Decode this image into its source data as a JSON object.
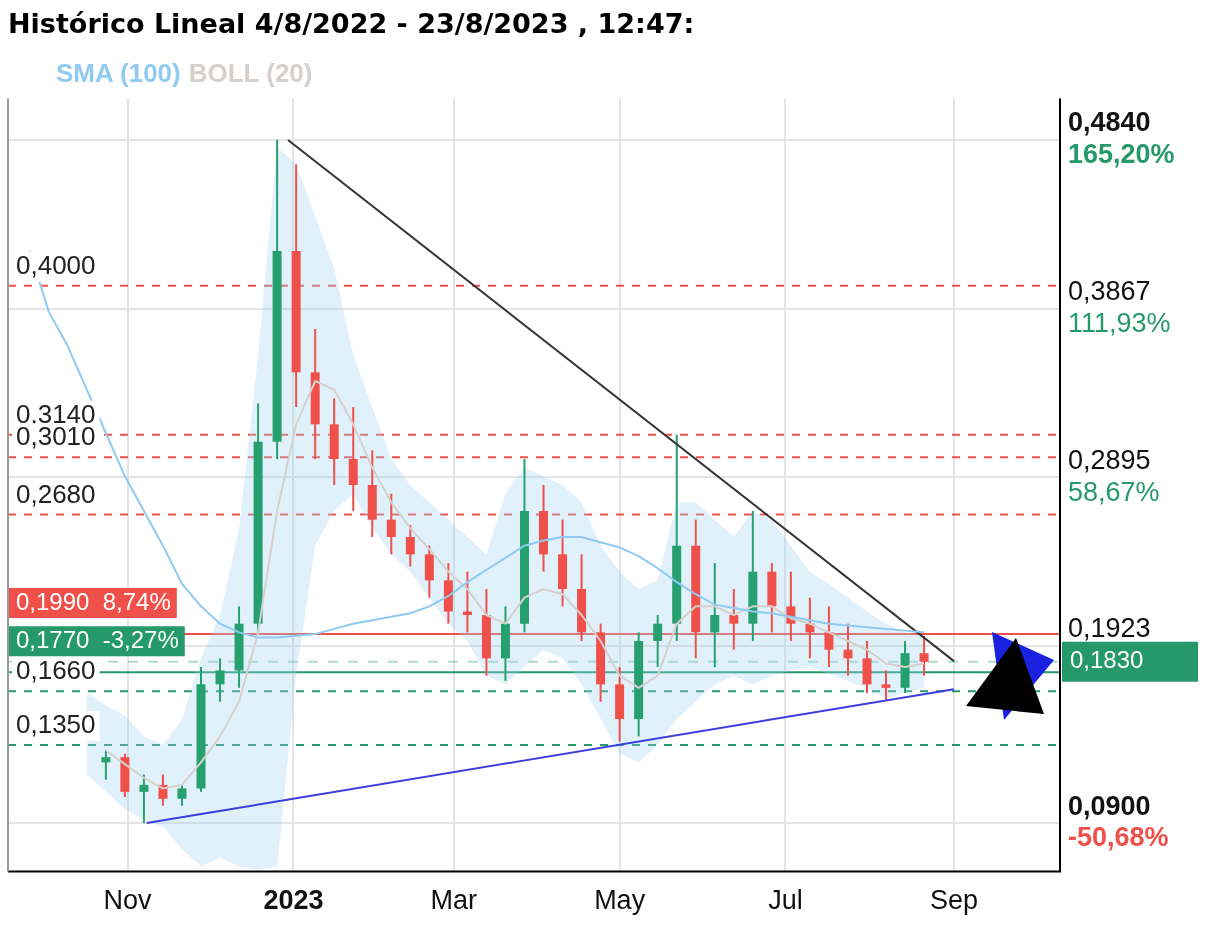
{
  "chart_data": {
    "type": "candlestick",
    "title": "Histórico Lineal 4/8/2022 - 23/8/2023 , 12:47:",
    "x": [
      "2022-09-26",
      "2022-10-03",
      "2022-10-10",
      "2022-10-17",
      "2022-10-24",
      "2022-10-31",
      "2022-11-07",
      "2022-11-14",
      "2022-11-21",
      "2022-11-28",
      "2022-12-05",
      "2022-12-12",
      "2022-12-19",
      "2022-12-26",
      "2023-01-02",
      "2023-01-09",
      "2023-01-16",
      "2023-01-23",
      "2023-01-30",
      "2023-02-06",
      "2023-02-13",
      "2023-02-20",
      "2023-02-27",
      "2023-03-06",
      "2023-03-13",
      "2023-03-20",
      "2023-03-27",
      "2023-04-03",
      "2023-04-10",
      "2023-04-17",
      "2023-04-24",
      "2023-05-01",
      "2023-05-08",
      "2023-05-15",
      "2023-05-22",
      "2023-05-29",
      "2023-06-05",
      "2023-06-12",
      "2023-06-19",
      "2023-06-26",
      "2023-07-03",
      "2023-07-10",
      "2023-07-17",
      "2023-07-24",
      "2023-07-31",
      "2023-08-07",
      "2023-08-14",
      "2023-08-21"
    ],
    "ohlc": [
      null,
      null,
      null,
      null,
      [
        0.125,
        0.132,
        0.115,
        0.128
      ],
      [
        0.128,
        0.13,
        0.105,
        0.108
      ],
      [
        0.108,
        0.118,
        0.09,
        0.112
      ],
      [
        0.112,
        0.118,
        0.1,
        0.104
      ],
      [
        0.104,
        0.112,
        0.1,
        0.11
      ],
      [
        0.11,
        0.18,
        0.108,
        0.17
      ],
      [
        0.17,
        0.185,
        0.16,
        0.178
      ],
      [
        0.178,
        0.215,
        0.168,
        0.205
      ],
      [
        0.205,
        0.332,
        0.2,
        0.31
      ],
      [
        0.31,
        0.484,
        0.3,
        0.42
      ],
      [
        0.42,
        0.47,
        0.33,
        0.35
      ],
      [
        0.35,
        0.375,
        0.3,
        0.32
      ],
      [
        0.32,
        0.335,
        0.285,
        0.3
      ],
      [
        0.3,
        0.33,
        0.27,
        0.285
      ],
      [
        0.285,
        0.305,
        0.255,
        0.265
      ],
      [
        0.265,
        0.28,
        0.245,
        0.255
      ],
      [
        0.255,
        0.262,
        0.238,
        0.245
      ],
      [
        0.245,
        0.25,
        0.22,
        0.23
      ],
      [
        0.23,
        0.24,
        0.205,
        0.212
      ],
      [
        0.212,
        0.235,
        0.2,
        0.21
      ],
      [
        0.21,
        0.225,
        0.175,
        0.185
      ],
      [
        0.185,
        0.215,
        0.172,
        0.205
      ],
      [
        0.205,
        0.3,
        0.2,
        0.27
      ],
      [
        0.27,
        0.285,
        0.235,
        0.245
      ],
      [
        0.245,
        0.265,
        0.215,
        0.225
      ],
      [
        0.225,
        0.245,
        0.195,
        0.2
      ],
      [
        0.2,
        0.205,
        0.16,
        0.17
      ],
      [
        0.17,
        0.18,
        0.137,
        0.15
      ],
      [
        0.15,
        0.2,
        0.14,
        0.195
      ],
      [
        0.195,
        0.21,
        0.18,
        0.205
      ],
      [
        0.205,
        0.314,
        0.195,
        0.25
      ],
      [
        0.25,
        0.265,
        0.185,
        0.2
      ],
      [
        0.2,
        0.24,
        0.18,
        0.21
      ],
      [
        0.21,
        0.225,
        0.19,
        0.205
      ],
      [
        0.205,
        0.27,
        0.195,
        0.235
      ],
      [
        0.235,
        0.24,
        0.2,
        0.215
      ],
      [
        0.215,
        0.235,
        0.195,
        0.205
      ],
      [
        0.205,
        0.22,
        0.185,
        0.2
      ],
      [
        0.2,
        0.215,
        0.18,
        0.19
      ],
      [
        0.19,
        0.205,
        0.175,
        0.185
      ],
      [
        0.185,
        0.195,
        0.165,
        0.17
      ],
      [
        0.17,
        0.178,
        0.161,
        0.168
      ],
      [
        0.168,
        0.195,
        0.165,
        0.188
      ],
      [
        0.188,
        0.198,
        0.175,
        0.183
      ]
    ],
    "colors": [
      null,
      null,
      null,
      null,
      "#26a06e",
      "#f0504a",
      "#26a06e",
      "#f0504a",
      "#26a06e",
      "#26a06e",
      "#26a06e",
      "#26a06e",
      "#26a06e",
      "#26a06e",
      "#f0504a",
      "#f0504a",
      "#f0504a",
      "#f0504a",
      "#f0504a",
      "#f0504a",
      "#f0504a",
      "#f0504a",
      "#f0504a",
      "#f0504a",
      "#f0504a",
      "#26a06e",
      "#26a06e",
      "#f0504a",
      "#f0504a",
      "#f0504a",
      "#f0504a",
      "#f0504a",
      "#26a06e",
      "#26a06e",
      "#26a06e",
      "#f0504a",
      "#26a06e",
      "#f0504a",
      "#26a06e",
      "#f0504a",
      "#f0504a",
      "#f0504a",
      "#f0504a",
      "#f0504a",
      "#f0504a",
      "#f0504a",
      "#26a06e",
      "#f0504a"
    ],
    "series": [
      {
        "type": "line",
        "name": "SMA (100)",
        "color": "#90caf0",
        "values": [
          0.42,
          0.385,
          0.365,
          0.34,
          0.315,
          0.29,
          0.27,
          0.25,
          0.228,
          0.215,
          0.205,
          0.2,
          0.197,
          0.197,
          0.198,
          0.199,
          0.202,
          0.205,
          0.207,
          0.209,
          0.211,
          0.215,
          0.221,
          0.229,
          0.236,
          0.243,
          0.25,
          0.253,
          0.255,
          0.255,
          0.252,
          0.249,
          0.244,
          0.237,
          0.229,
          0.222,
          0.216,
          0.214,
          0.212,
          0.211,
          0.209,
          0.207,
          0.205,
          0.204,
          0.203,
          0.202,
          0.201,
          0.2
        ]
      },
      {
        "type": "line",
        "name": "BOLL (20)",
        "color": "#d6d0cc",
        "values": [
          null,
          null,
          null,
          null,
          0.132,
          0.124,
          0.116,
          0.11,
          0.112,
          0.125,
          0.14,
          0.16,
          0.2,
          0.27,
          0.32,
          0.345,
          0.34,
          0.32,
          0.295,
          0.275,
          0.26,
          0.248,
          0.235,
          0.225,
          0.21,
          0.205,
          0.22,
          0.225,
          0.222,
          0.21,
          0.195,
          0.175,
          0.168,
          0.175,
          0.205,
          0.215,
          0.215,
          0.21,
          0.215,
          0.215,
          0.208,
          0.205,
          0.2,
          0.195,
          0.19,
          0.182,
          0.18,
          0.182
        ],
        "lower": [
          null,
          null,
          null,
          0.118,
          0.108,
          0.098,
          0.092,
          0.088,
          0.075,
          0.065,
          0.07,
          0.065,
          0.063,
          0.065,
          0.175,
          0.25,
          0.27,
          0.28,
          0.26,
          0.245,
          0.235,
          0.22,
          0.205,
          0.195,
          0.175,
          0.17,
          0.18,
          0.19,
          0.185,
          0.17,
          0.15,
          0.13,
          0.125,
          0.135,
          0.15,
          0.16,
          0.17,
          0.175,
          0.17,
          0.175,
          0.178,
          0.18,
          0.176,
          0.172,
          0.168,
          0.162,
          0.165,
          0.168
        ],
        "upper": [
          null,
          null,
          null,
          0.165,
          0.158,
          0.152,
          0.14,
          0.135,
          0.15,
          0.185,
          0.21,
          0.26,
          0.36,
          0.48,
          0.47,
          0.44,
          0.41,
          0.36,
          0.33,
          0.3,
          0.285,
          0.275,
          0.265,
          0.255,
          0.245,
          0.28,
          0.295,
          0.29,
          0.285,
          0.275,
          0.25,
          0.235,
          0.225,
          0.23,
          0.275,
          0.275,
          0.265,
          0.255,
          0.27,
          0.265,
          0.25,
          0.235,
          0.228,
          0.22,
          0.212,
          0.205,
          0.2,
          0.198
        ]
      },
      {
        "type": "line",
        "color": "#333333",
        "x": [
          "2022-12-30",
          "2023-09-01"
        ],
        "values": [
          0.484,
          0.1834
        ]
      },
      {
        "type": "line",
        "color": "#3a3ee0",
        "x": [
          "2022-11-08",
          "2023-09-01"
        ],
        "values": [
          0.09,
          0.1672
        ]
      }
    ],
    "xlim": [
      "2022-09-18",
      "2023-10-10"
    ],
    "xticks": [
      {
        "value": "2022-11-01",
        "label": "Nov"
      },
      {
        "value": "2023-01-01",
        "label": "2023"
      },
      {
        "value": "2023-03-01",
        "label": "Mar"
      },
      {
        "value": "2023-05-01",
        "label": "May"
      },
      {
        "value": "2023-07-01",
        "label": "Jul"
      },
      {
        "value": "2023-09-01",
        "label": "Sep"
      }
    ],
    "ylim": [
      0.062,
      0.508
    ],
    "yticks": [
      {
        "value": 0.484,
        "label": "0,4840"
      },
      {
        "value": 0.3867,
        "label": "0,3867"
      },
      {
        "value": 0.2895,
        "label": "0,2895"
      },
      {
        "value": 0.1923,
        "label": "0,1923"
      },
      {
        "value": 0.09,
        "label": "0,0900"
      }
    ],
    "y2lim": [
      -66.03,
      178.36
    ],
    "y2ticks": [
      {
        "value": 165.2,
        "label": "165,20%"
      },
      {
        "value": 111.93,
        "label": "111,93%"
      },
      {
        "value": 58.67,
        "label": "58,67%"
      },
      {
        "value": -50.68,
        "label": "-50,68%"
      }
    ],
    "ref_lines": [
      {
        "axis": "y",
        "value": 0.4,
        "label": "0,4000",
        "color": "#f0504a",
        "line_style": "dashed"
      },
      {
        "axis": "y",
        "value": 0.314,
        "label": "0,3140",
        "color": "#f0504a",
        "line_style": "dashed"
      },
      {
        "axis": "y",
        "value": 0.301,
        "label": "0,3010",
        "color": "#f0504a",
        "line_style": "dashed"
      },
      {
        "axis": "y",
        "value": 0.268,
        "label": "0,2680",
        "color": "#f0504a",
        "line_style": "dashed"
      },
      {
        "axis": "y",
        "value": 0.199,
        "label": "0,1990  8,74%",
        "color": "#f0504a",
        "line_style": "solid"
      },
      {
        "axis": "y",
        "value": 0.177,
        "label": "0,1770  -3,27%",
        "color": "#26996b",
        "line_style": "solid"
      },
      {
        "axis": "y",
        "value": 0.166,
        "label": "0,1660",
        "color": "#26996b",
        "line_style": "dashed"
      },
      {
        "axis": "y",
        "value": 0.135,
        "label": "0,1350",
        "color": "#26996b",
        "line_style": "dashed"
      },
      {
        "axis": "y",
        "value": 0.183,
        "label": "0,1830",
        "color": "#26996b",
        "line_style": "dotted"
      }
    ],
    "grid": true,
    "legend": "top left",
    "marker": "none"
  }
}
